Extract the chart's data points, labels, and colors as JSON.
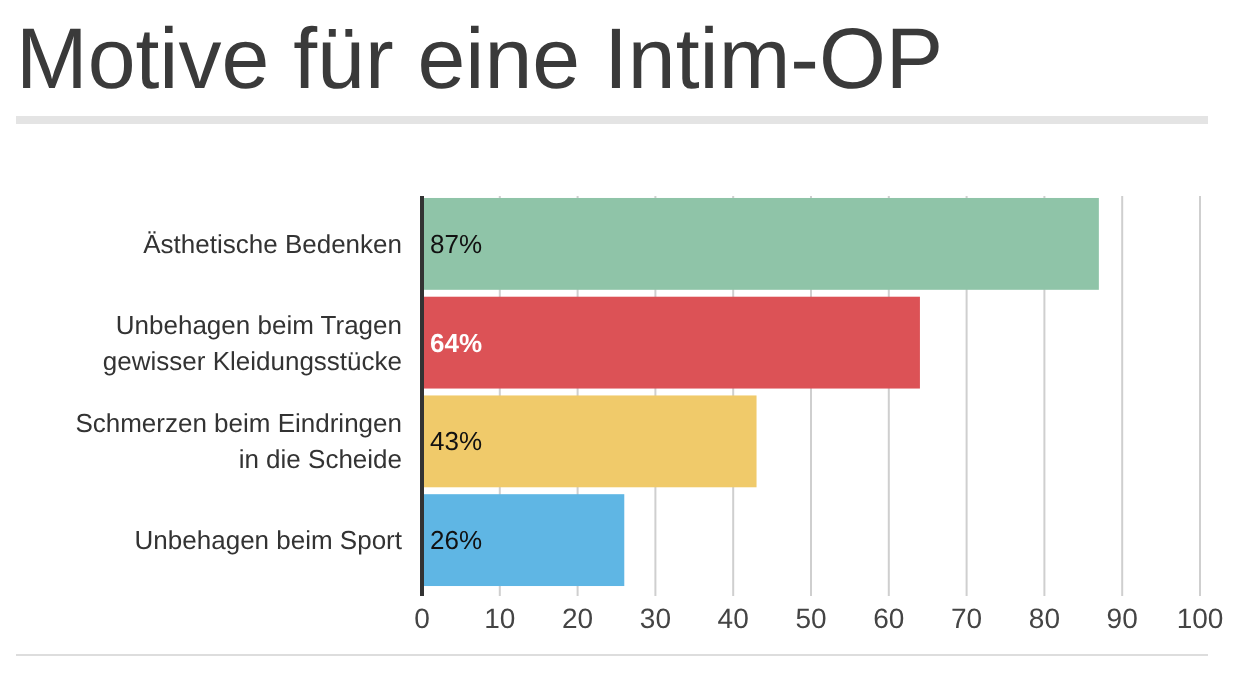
{
  "chart_data": {
    "type": "bar",
    "orientation": "horizontal",
    "title": "Motive für eine Intim-OP",
    "categories": [
      "Ästhetische Bedenken",
      "Unbehagen beim Tragen gewisser Kleidungsstücke",
      "Schmerzen beim Eindringen in die Scheide",
      "Unbehagen beim Sport"
    ],
    "values": [
      87,
      64,
      43,
      26
    ],
    "colors": [
      "#8fc4a8",
      "#dc5256",
      "#f0ca6a",
      "#5fb6e4"
    ],
    "value_labels": [
      "87%",
      "64%",
      "43%",
      "26%"
    ],
    "xlim": [
      0,
      100
    ],
    "xticks": [
      0,
      10,
      20,
      30,
      40,
      50,
      60,
      70,
      80,
      90,
      100
    ],
    "grid": "x"
  }
}
